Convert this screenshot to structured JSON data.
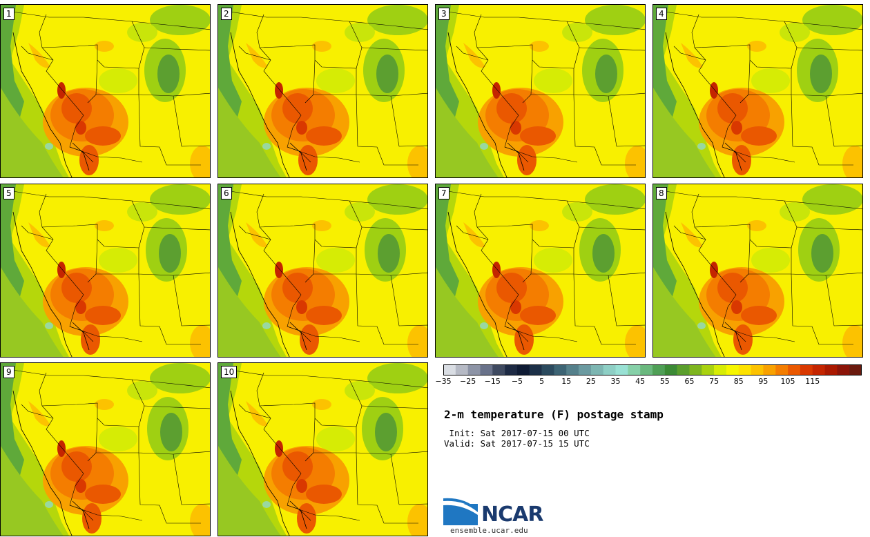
{
  "panels": [
    {
      "label": "1"
    },
    {
      "label": "2"
    },
    {
      "label": "3"
    },
    {
      "label": "4"
    },
    {
      "label": "5"
    },
    {
      "label": "6"
    },
    {
      "label": "7"
    },
    {
      "label": "8"
    },
    {
      "label": "9"
    },
    {
      "label": "10"
    }
  ],
  "colorbar": {
    "colors": [
      "#d9dde3",
      "#b6bac5",
      "#8d94a6",
      "#69728a",
      "#3e4960",
      "#1d2a44",
      "#0f1b34",
      "#1c3048",
      "#2b4a5e",
      "#3d6474",
      "#55808b",
      "#6b9aa0",
      "#7db6b2",
      "#8ecfc5",
      "#99e1d4",
      "#86d0a8",
      "#6ab87e",
      "#4f9f56",
      "#3b8a35",
      "#5a9e2c",
      "#7eb51f",
      "#a9d20f",
      "#d7ec05",
      "#f6f600",
      "#fde200",
      "#fcc200",
      "#f8a100",
      "#f47d00",
      "#ea5800",
      "#d93800",
      "#c42500",
      "#aa1900",
      "#8b1408",
      "#6a1a0e"
    ],
    "tick_labels": [
      "−35",
      "−25",
      "−15",
      "−5",
      "5",
      "15",
      "25",
      "35",
      "45",
      "55",
      "65",
      "75",
      "85",
      "95",
      "105",
      "115"
    ]
  },
  "title": "2-m temperature (F) postage stamp",
  "init_line": " Init: Sat 2017-07-15 00 UTC",
  "valid_line": "Valid: Sat 2017-07-15 15 UTC",
  "logo": {
    "name": "NCAR",
    "url": "ensemble.ucar.edu"
  }
}
